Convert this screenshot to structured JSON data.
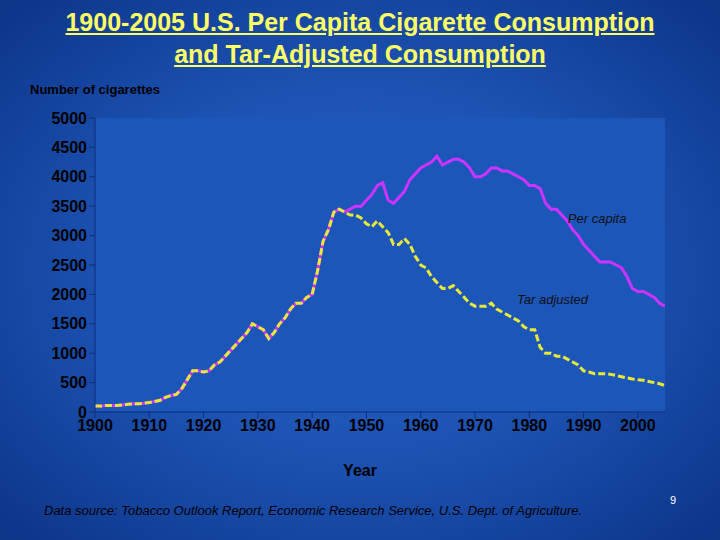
{
  "chart_data": {
    "type": "line",
    "title": "1900-2005 U.S. Per Capita Cigarette Consumption\nand Tar-Adjusted Consumption",
    "y_label": "Number of cigarettes",
    "x_label": "Year",
    "source": "Data source: Tobacco Outlook Report, Economic Research Service, U.S. Dept. of Agriculture.",
    "page_number": "9",
    "x": [
      1900,
      1901,
      1902,
      1903,
      1904,
      1905,
      1906,
      1907,
      1908,
      1909,
      1910,
      1911,
      1912,
      1913,
      1914,
      1915,
      1916,
      1917,
      1918,
      1919,
      1920,
      1921,
      1922,
      1923,
      1924,
      1925,
      1926,
      1927,
      1928,
      1929,
      1930,
      1931,
      1932,
      1933,
      1934,
      1935,
      1936,
      1937,
      1938,
      1939,
      1940,
      1941,
      1942,
      1943,
      1944,
      1945,
      1946,
      1947,
      1948,
      1949,
      1950,
      1951,
      1952,
      1953,
      1954,
      1955,
      1956,
      1957,
      1958,
      1959,
      1960,
      1961,
      1962,
      1963,
      1964,
      1965,
      1966,
      1967,
      1968,
      1969,
      1970,
      1971,
      1972,
      1973,
      1974,
      1975,
      1976,
      1977,
      1978,
      1979,
      1980,
      1981,
      1982,
      1983,
      1984,
      1985,
      1986,
      1987,
      1988,
      1989,
      1990,
      1991,
      1992,
      1993,
      1994,
      1995,
      1996,
      1997,
      1998,
      1999,
      2000,
      2001,
      2002,
      2003,
      2004,
      2005
    ],
    "series": [
      {
        "name": "Per capita",
        "color": "#cc33ff",
        "line_style": "solid",
        "values": [
          100,
          100,
          110,
          110,
          110,
          120,
          130,
          140,
          140,
          150,
          160,
          180,
          200,
          250,
          280,
          300,
          400,
          550,
          700,
          700,
          680,
          700,
          800,
          850,
          950,
          1050,
          1150,
          1250,
          1350,
          1500,
          1450,
          1400,
          1250,
          1350,
          1500,
          1600,
          1750,
          1850,
          1850,
          1950,
          2000,
          2400,
          2900,
          3100,
          3400,
          3450,
          3400,
          3450,
          3500,
          3500,
          3600,
          3700,
          3850,
          3900,
          3600,
          3550,
          3650,
          3750,
          3950,
          4050,
          4150,
          4200,
          4250,
          4350,
          4200,
          4250,
          4300,
          4300,
          4250,
          4150,
          4000,
          4000,
          4050,
          4150,
          4150,
          4100,
          4100,
          4050,
          4000,
          3950,
          3850,
          3850,
          3800,
          3550,
          3450,
          3450,
          3350,
          3250,
          3100,
          3000,
          2850,
          2750,
          2650,
          2550,
          2550,
          2550,
          2500,
          2450,
          2300,
          2100,
          2050,
          2050,
          2000,
          1950,
          1850,
          1800
        ]
      },
      {
        "name": "Tar adjusted",
        "color": "#e8e83a",
        "line_style": "dashed",
        "values": [
          100,
          100,
          110,
          110,
          110,
          120,
          130,
          140,
          140,
          150,
          160,
          180,
          200,
          250,
          280,
          300,
          400,
          550,
          700,
          700,
          680,
          700,
          800,
          850,
          950,
          1050,
          1150,
          1250,
          1350,
          1500,
          1450,
          1400,
          1250,
          1350,
          1500,
          1600,
          1750,
          1850,
          1850,
          1950,
          2000,
          2400,
          2900,
          3100,
          3400,
          3450,
          3400,
          3350,
          3350,
          3300,
          3200,
          3150,
          3250,
          3150,
          3050,
          2850,
          2850,
          2950,
          2850,
          2650,
          2500,
          2450,
          2300,
          2200,
          2100,
          2100,
          2150,
          2050,
          1950,
          1850,
          1800,
          1800,
          1800,
          1850,
          1750,
          1700,
          1650,
          1600,
          1550,
          1450,
          1400,
          1400,
          1100,
          1000,
          1000,
          950,
          950,
          900,
          850,
          800,
          700,
          680,
          650,
          650,
          650,
          640,
          620,
          600,
          580,
          560,
          550,
          540,
          520,
          500,
          480,
          450
        ]
      }
    ],
    "xlim": [
      1900,
      2005
    ],
    "xticks": [
      1900,
      1910,
      1920,
      1930,
      1940,
      1950,
      1960,
      1970,
      1980,
      1990,
      2000
    ],
    "ylim": [
      0,
      5000
    ],
    "yticks": [
      0,
      500,
      1000,
      1500,
      2000,
      2500,
      3000,
      3500,
      4000,
      4500,
      5000
    ],
    "grid": false
  }
}
